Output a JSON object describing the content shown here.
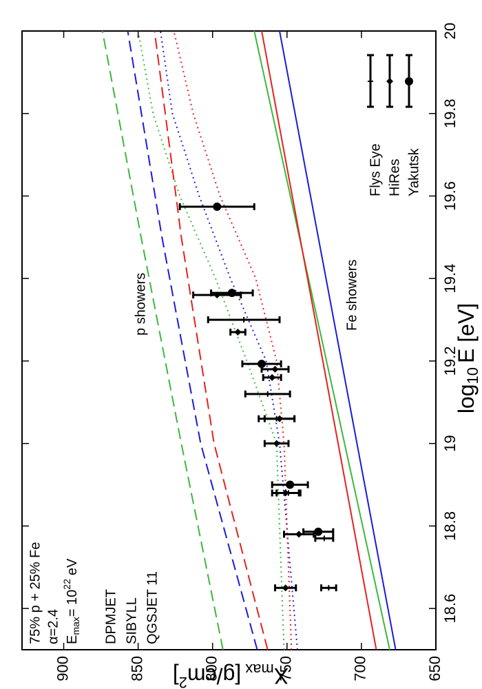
{
  "chart_data": {
    "type": "errorbar-lines",
    "x_label": {
      "base": "log",
      "sub": "10",
      "rest": "E [eV]"
    },
    "y_label": {
      "base": "X",
      "sub": "max",
      "rest": "[g/cm",
      "sup": "2",
      "end": "]"
    },
    "xlim": [
      18.5,
      20
    ],
    "ylim": [
      650,
      928
    ],
    "xticks": [
      18.6,
      18.8,
      19,
      19.2,
      19.4,
      19.6,
      19.8,
      20
    ],
    "yticks": [
      650,
      700,
      750,
      800,
      850,
      900
    ],
    "composition": "75% p + 25% Fe",
    "alpha_label": "α=2.4",
    "emax_label": {
      "base": "E",
      "sub": "max",
      "eq": "= 10",
      "sup": "22",
      "unit": "eV"
    },
    "p_label": "p showers",
    "fe_label": "Fe showers",
    "models": [
      {
        "name": "DPMJET",
        "color": "#3cb83c",
        "curves": [
          {
            "style": "solid",
            "x": [
              18.5,
              20
            ],
            "values": [
              681,
              772
            ]
          },
          {
            "style": "dashed",
            "x": [
              18.5,
              19,
              19.5,
              20
            ],
            "values": [
              793,
              821,
              848,
              874
            ]
          },
          {
            "style": "dotted",
            "x": [
              18.5,
              19,
              19.2,
              19.4,
              19.6,
              19.8,
              20
            ],
            "values": [
              752,
              757,
              777,
              798,
              822,
              840,
              850
            ]
          }
        ]
      },
      {
        "name": "SIBYLL",
        "color": "#1a1adc",
        "curves": [
          {
            "style": "solid",
            "x": [
              18.5,
              20
            ],
            "values": [
              677,
              755
            ]
          },
          {
            "style": "dashed",
            "x": [
              18.5,
              19,
              19.5,
              20
            ],
            "values": [
              770,
              808,
              834,
              857
            ]
          },
          {
            "style": "dotted",
            "x": [
              18.5,
              19,
              19.2,
              19.4,
              19.6,
              19.8,
              20
            ],
            "values": [
              743,
              755,
              764,
              788,
              809,
              827,
              835
            ]
          }
        ]
      },
      {
        "name": "QGSJET 11",
        "color": "#e6201e",
        "curves": [
          {
            "style": "solid",
            "x": [
              18.5,
              20
            ],
            "values": [
              690,
              767
            ]
          },
          {
            "style": "dashed",
            "x": [
              18.5,
              19,
              19.5,
              20
            ],
            "values": [
              763,
              799,
              821,
              839
            ]
          },
          {
            "style": "dotted",
            "x": [
              18.5,
              19,
              19.2,
              19.4,
              19.6,
              19.8,
              20
            ],
            "values": [
              747,
              752,
              757,
              771,
              795,
              813,
              826
            ]
          }
        ]
      }
    ],
    "datasets": [
      {
        "name": "Flys Eye",
        "marker": "tick",
        "x": [
          18.65,
          18.77,
          18.88,
          19.06,
          19.12,
          19.3
        ],
        "values": [
          722,
          725,
          749,
          757,
          763,
          779
        ],
        "errors": [
          5,
          6,
          8,
          12,
          15,
          24
        ]
      },
      {
        "name": "HiRes",
        "marker": "diamond",
        "x": [
          18.65,
          18.78,
          18.88,
          19.0,
          19.06,
          19.16,
          19.18,
          19.27,
          19.36
        ],
        "values": [
          751,
          742,
          751,
          757,
          755,
          760,
          758,
          783,
          797
        ],
        "errors": [
          7,
          10,
          9,
          8,
          10,
          6,
          9,
          5,
          16
        ]
      },
      {
        "name": "Yakutsk",
        "marker": "circle",
        "x": [
          18.786,
          18.9,
          19.193,
          19.365,
          19.574
        ],
        "values": [
          729,
          748,
          767,
          787,
          797
        ],
        "errors": [
          10,
          12,
          13,
          14,
          25
        ]
      }
    ]
  }
}
